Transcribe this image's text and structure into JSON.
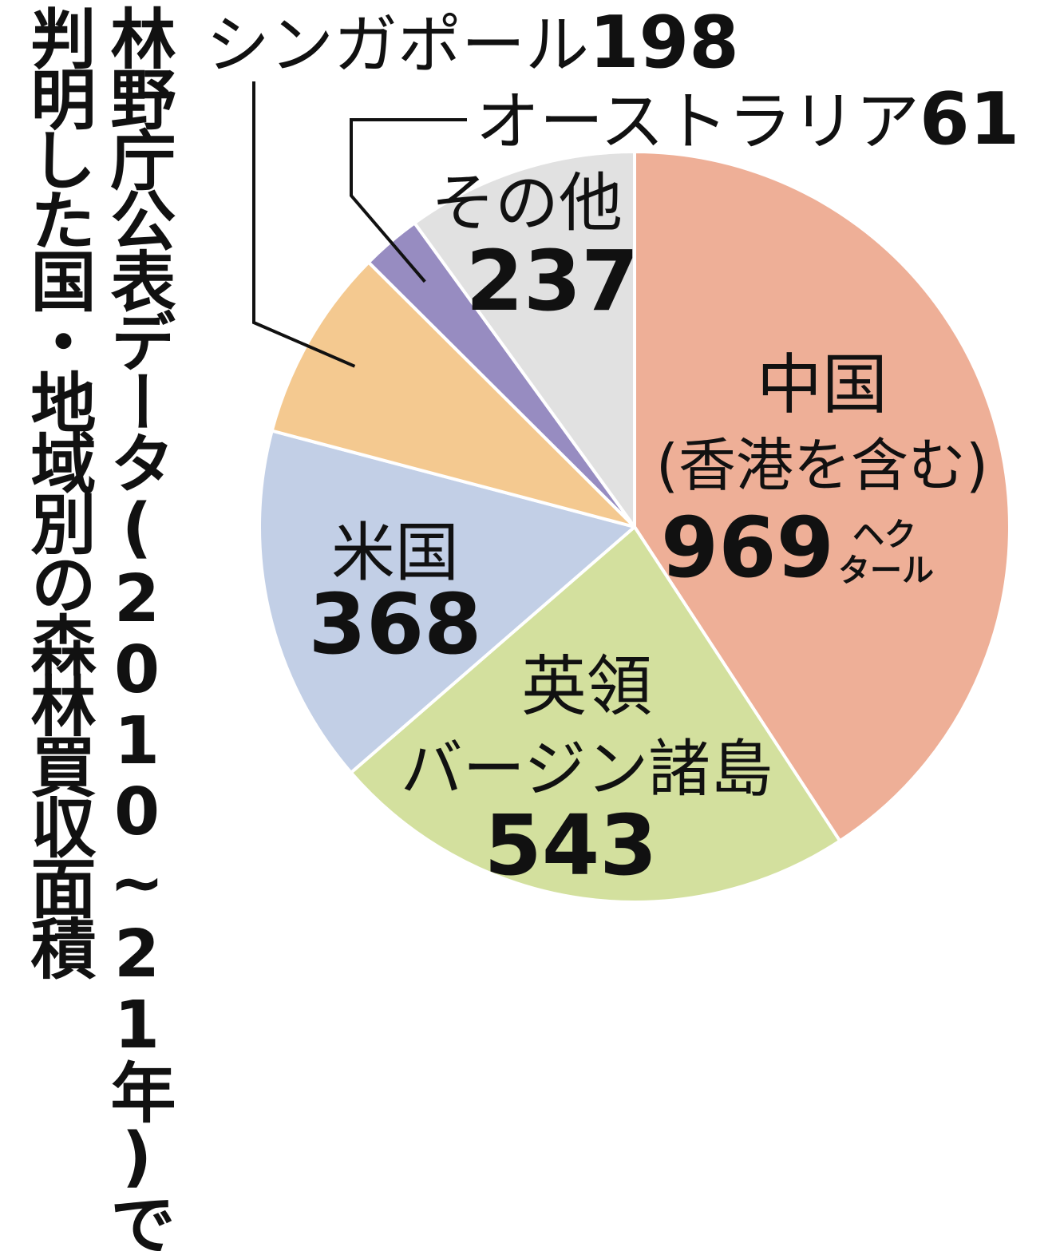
{
  "title": {
    "line1": "林野庁公表データ(2010~21年)で",
    "line2": "判明した国・地域別の森林買収面積"
  },
  "chart_data": {
    "type": "pie",
    "unit": "ヘクタール",
    "slices": [
      {
        "label": "中国",
        "sublabel": "(香港を含む)",
        "value": 969,
        "color": "#eeaf97"
      },
      {
        "label": "英領",
        "sublabel": "バージン諸島",
        "value": 543,
        "color": "#d3e09e"
      },
      {
        "label": "米国",
        "sublabel": "",
        "value": 368,
        "color": "#c2cfe6"
      },
      {
        "label": "シンガポール",
        "sublabel": "",
        "value": 198,
        "color": "#f4c990"
      },
      {
        "label": "オーストラリア",
        "sublabel": "",
        "value": 61,
        "color": "#978cc1"
      },
      {
        "label": "その他",
        "sublabel": "",
        "value": 237,
        "color": "#e1e1e1"
      }
    ]
  }
}
